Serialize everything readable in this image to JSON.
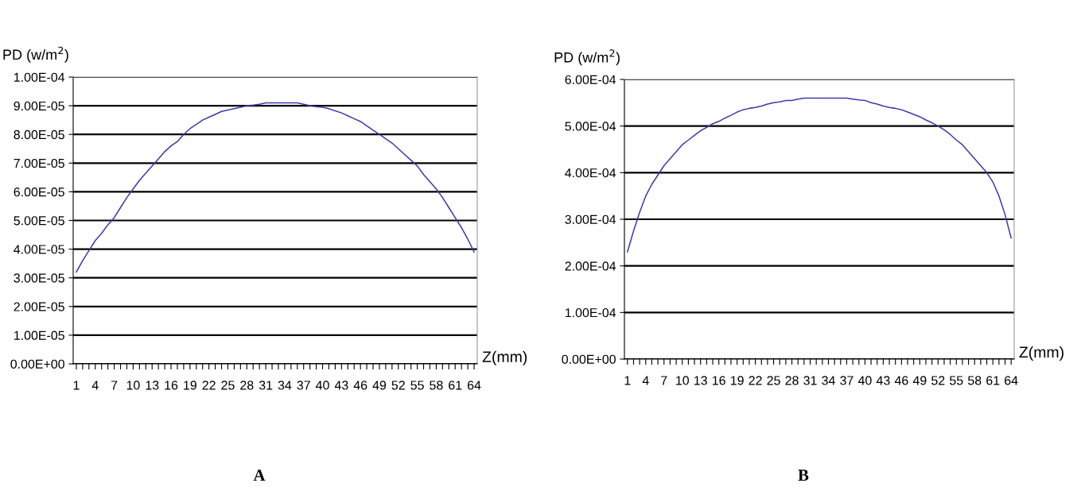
{
  "chart_data": [
    {
      "type": "line",
      "ylabel": "PD (w/m$^{2}$)",
      "xlabel": "Z(mm)",
      "annotations": [
        "A"
      ],
      "categories": [
        "1",
        null,
        null,
        "4",
        null,
        null,
        "7",
        null,
        null,
        "10",
        null,
        null,
        "13",
        null,
        null,
        "16",
        null,
        null,
        "19",
        null,
        null,
        "22",
        null,
        null,
        "25",
        null,
        null,
        "28",
        null,
        null,
        "31",
        null,
        null,
        "34",
        null,
        null,
        "37",
        null,
        null,
        "40",
        null,
        null,
        "43",
        null,
        null,
        "46",
        null,
        null,
        "49",
        null,
        null,
        "52",
        null,
        null,
        "55",
        null,
        null,
        "58",
        null,
        null,
        "61",
        null,
        null,
        "64"
      ],
      "series": [
        {
          "color": "#3c3ca8",
          "values": [
            3.2e-05,
            3.6e-05,
            3.95e-05,
            4.3e-05,
            4.55e-05,
            4.85e-05,
            5.1e-05,
            5.45e-05,
            5.8e-05,
            6.1e-05,
            6.4e-05,
            6.65e-05,
            6.9e-05,
            7.15e-05,
            7.4e-05,
            7.6e-05,
            7.75e-05,
            8e-05,
            8.2e-05,
            8.35e-05,
            8.5e-05,
            8.6e-05,
            8.7e-05,
            8.8e-05,
            8.85e-05,
            8.9e-05,
            8.95e-05,
            9e-05,
            9.02e-05,
            9.05e-05,
            9.1e-05,
            9.1e-05,
            9.1e-05,
            9.1e-05,
            9.1e-05,
            9.1e-05,
            9.05e-05,
            9e-05,
            8.97e-05,
            8.95e-05,
            8.9e-05,
            8.82e-05,
            8.75e-05,
            8.65e-05,
            8.55e-05,
            8.45e-05,
            8.3e-05,
            8.15e-05,
            8e-05,
            7.85e-05,
            7.7e-05,
            7.5e-05,
            7.3e-05,
            7.1e-05,
            6.9e-05,
            6.6e-05,
            6.35e-05,
            6.1e-05,
            5.8e-05,
            5.45e-05,
            5.1e-05,
            4.75e-05,
            4.35e-05,
            3.9e-05
          ]
        }
      ],
      "ylim": [
        0,
        0.0001
      ],
      "yticks": [
        {
          "value": 0,
          "label": "0.00E+00"
        },
        {
          "value": 1e-05,
          "label": "1.00E-05"
        },
        {
          "value": 2e-05,
          "label": "2.00E-05"
        },
        {
          "value": 3e-05,
          "label": "3.00E-05"
        },
        {
          "value": 4e-05,
          "label": "4.00E-05"
        },
        {
          "value": 5e-05,
          "label": "5.00E-05"
        },
        {
          "value": 6e-05,
          "label": "6.00E-05"
        },
        {
          "value": 7e-05,
          "label": "7.00E-05"
        },
        {
          "value": 8e-05,
          "label": "8.00E-05"
        },
        {
          "value": 9e-05,
          "label": "9.00E-05"
        },
        {
          "value": 0.0001,
          "label": "1.00E-04"
        }
      ],
      "grid": "y",
      "marker": "none",
      "line_style": "solid"
    },
    {
      "type": "line",
      "ylabel": "PD (w/m$^{2}$)",
      "xlabel": "Z(mm)",
      "annotations": [
        "B"
      ],
      "categories": [
        "1",
        null,
        null,
        "4",
        null,
        null,
        "7",
        null,
        null,
        "10",
        null,
        null,
        "13",
        null,
        null,
        "16",
        null,
        null,
        "19",
        null,
        null,
        "22",
        null,
        null,
        "25",
        null,
        null,
        "28",
        null,
        null,
        "31",
        null,
        null,
        "34",
        null,
        null,
        "37",
        null,
        null,
        "40",
        null,
        null,
        "43",
        null,
        null,
        "46",
        null,
        null,
        "49",
        null,
        null,
        "52",
        null,
        null,
        "55",
        null,
        null,
        "58",
        null,
        null,
        "61",
        null,
        null,
        "64"
      ],
      "series": [
        {
          "color": "#3c3ca8",
          "values": [
            0.00023,
            0.000275,
            0.000315,
            0.00035,
            0.000375,
            0.000395,
            0.000415,
            0.00043,
            0.000445,
            0.00046,
            0.00047,
            0.00048,
            0.00049,
            0.000497,
            0.000505,
            0.00051,
            0.000517,
            0.000523,
            0.00053,
            0.000535,
            0.000538,
            0.00054,
            0.000543,
            0.000547,
            0.00055,
            0.000552,
            0.000555,
            0.000555,
            0.000558,
            0.00056,
            0.00056,
            0.00056,
            0.00056,
            0.00056,
            0.00056,
            0.00056,
            0.00056,
            0.000558,
            0.000556,
            0.000555,
            0.00055,
            0.000547,
            0.000543,
            0.00054,
            0.000538,
            0.000535,
            0.00053,
            0.000525,
            0.00052,
            0.000513,
            0.000507,
            0.0005,
            0.000492,
            0.000482,
            0.00047,
            0.00046,
            0.000445,
            0.00043,
            0.000415,
            0.0004,
            0.00038,
            0.00035,
            0.00031,
            0.00026
          ]
        }
      ],
      "ylim": [
        0,
        0.0006
      ],
      "yticks": [
        {
          "value": 0,
          "label": "0.00E+00"
        },
        {
          "value": 0.0001,
          "label": "1.00E-04"
        },
        {
          "value": 0.0002,
          "label": "2.00E-04"
        },
        {
          "value": 0.0003,
          "label": "3.00E-04"
        },
        {
          "value": 0.0004,
          "label": "4.00E-04"
        },
        {
          "value": 0.0005,
          "label": "5.00E-04"
        },
        {
          "value": 0.0006,
          "label": "6.00E-04"
        }
      ],
      "grid": "y",
      "marker": "none",
      "line_style": "solid"
    }
  ]
}
